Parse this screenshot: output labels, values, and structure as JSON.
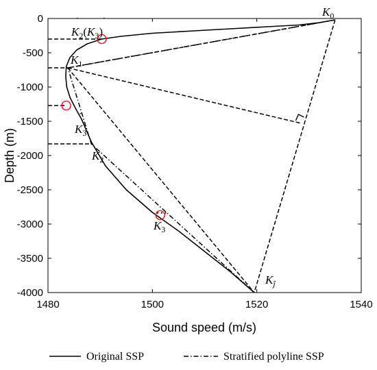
{
  "chart_data": {
    "type": "line",
    "xlabel": "Sound speed (m/s)",
    "ylabel": "Depth (m)",
    "xlim": [
      1480,
      1540
    ],
    "ylim": [
      -4000,
      0
    ],
    "xticks": [
      1480,
      1500,
      1520,
      1540
    ],
    "yticks": [
      0,
      -500,
      -1000,
      -1500,
      -2000,
      -2500,
      -3000,
      -3500,
      -4000
    ],
    "grid": false,
    "legend_placement": "bottom",
    "series": [
      {
        "name": "Original SSP",
        "style": "solid",
        "x": [
          1534.2,
          1532,
          1528,
          1522,
          1515,
          1508,
          1500,
          1494,
          1490.3,
          1487.5,
          1485.5,
          1484.2,
          1483.5,
          1483.4,
          1483.6,
          1484.2,
          1485.2,
          1486.5,
          1488.3,
          1491,
          1495,
          1500,
          1505,
          1510,
          1515,
          1519.5
        ],
        "y": [
          -30,
          -60,
          -95,
          -120,
          -150,
          -180,
          -215,
          -260,
          -300,
          -370,
          -460,
          -570,
          -700,
          -850,
          -1000,
          -1150,
          -1300,
          -1480,
          -1800,
          -2150,
          -2500,
          -2830,
          -3100,
          -3400,
          -3700,
          -4000
        ]
      },
      {
        "name": "Stratified polyline SSP",
        "style": "dashdot",
        "x": [
          1535,
          1483.8,
          1488.3,
          1519.5
        ],
        "y": [
          -20,
          -720,
          -1830,
          -4000
        ]
      }
    ],
    "construction_lines": [
      {
        "x": [
          1535,
          1483.8
        ],
        "y": [
          -20,
          -720
        ]
      },
      {
        "x": [
          1483.8,
          1528.5
        ],
        "y": [
          -720,
          -1530
        ]
      },
      {
        "x": [
          1483.8,
          1519.5
        ],
        "y": [
          -720,
          -4000
        ]
      },
      {
        "x": [
          1535,
          1519.5
        ],
        "y": [
          -20,
          -4000
        ]
      },
      {
        "x": [
          1480,
          1490.3
        ],
        "y": [
          -300,
          -300
        ]
      },
      {
        "x": [
          1480,
          1483.8
        ],
        "y": [
          -720,
          -720
        ]
      },
      {
        "x": [
          1480,
          1483.5
        ],
        "y": [
          -1270,
          -1270
        ]
      },
      {
        "x": [
          1480,
          1488.3
        ],
        "y": [
          -1830,
          -1830
        ]
      }
    ],
    "circled_points": [
      {
        "x": 1490.3,
        "y": -300
      },
      {
        "x": 1483.5,
        "y": -1270
      },
      {
        "x": 1501.5,
        "y": -2870
      }
    ],
    "annotations": {
      "k0": "K0",
      "k1": "K1",
      "k2": "K2",
      "k3_ddot": "K3",
      "k3_tddot": "K3",
      "kj": "K",
      "kj_sub": "ĵ",
      "k2_dot_label": "K2(K3)"
    },
    "colors": {
      "line": "#000000",
      "circle": "#e0282c"
    }
  }
}
